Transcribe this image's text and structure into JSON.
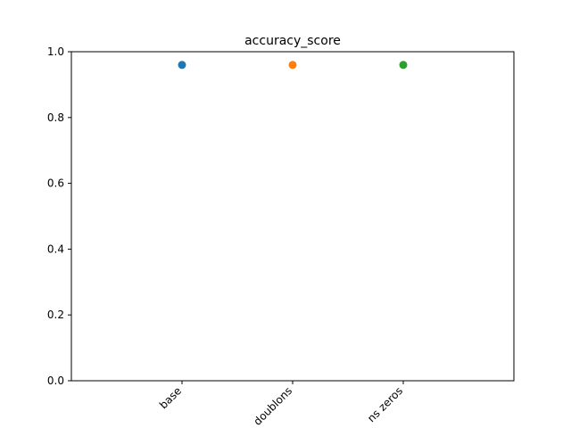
{
  "chart_data": {
    "type": "scatter",
    "title": "accuracy_score",
    "categories": [
      "base",
      "doublons",
      "ns zeros"
    ],
    "values": [
      0.96,
      0.96,
      0.96
    ],
    "colors": [
      "#1f77b4",
      "#ff7f0e",
      "#2ca02c"
    ],
    "ylim": [
      0,
      1
    ],
    "yticks": [
      {
        "value": 0,
        "label": "0.0"
      },
      {
        "value": 0.2,
        "label": "0.2"
      },
      {
        "value": 0.4,
        "label": "0.4"
      },
      {
        "value": 0.6,
        "label": "0.6"
      },
      {
        "value": 0.8,
        "label": "0.8"
      },
      {
        "value": 1,
        "label": "1.0"
      }
    ]
  }
}
